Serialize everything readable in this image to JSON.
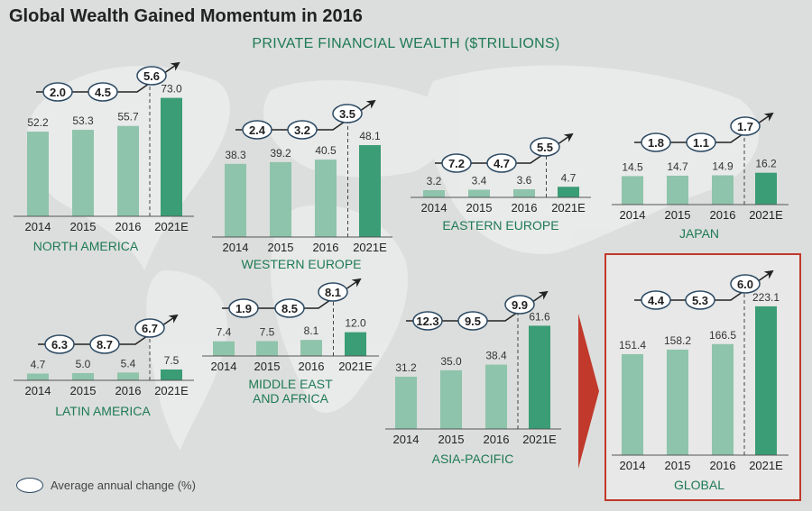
{
  "title": "Global Wealth Gained Momentum in 2016",
  "subtitle": "PRIVATE FINANCIAL WEALTH ($TRILLIONS)",
  "legend_label": "Average annual change (%)",
  "colors": {
    "bar": "#8ec4ab",
    "bar_forecast": "#3a9d75",
    "region_label": "#1e7a55",
    "highlight_border": "#c0392b"
  },
  "chart_data": [
    {
      "type": "bar",
      "title": "NORTH AMERICA",
      "categories": [
        "2014",
        "2015",
        "2016",
        "2021E"
      ],
      "values": [
        52.2,
        53.3,
        55.7,
        73.0
      ],
      "value_labels": [
        "52.2",
        "53.3",
        "55.7",
        "73.0"
      ],
      "annual_change": [
        "2.0",
        "4.5",
        "5.6"
      ]
    },
    {
      "type": "bar",
      "title": "WESTERN EUROPE",
      "categories": [
        "2014",
        "2015",
        "2016",
        "2021E"
      ],
      "values": [
        38.3,
        39.2,
        40.5,
        48.1
      ],
      "value_labels": [
        "38.3",
        "39.2",
        "40.5",
        "48.1"
      ],
      "annual_change": [
        "2.4",
        "3.2",
        "3.5"
      ]
    },
    {
      "type": "bar",
      "title": "EASTERN EUROPE",
      "categories": [
        "2014",
        "2015",
        "2016",
        "2021E"
      ],
      "values": [
        3.2,
        3.4,
        3.6,
        4.7
      ],
      "value_labels": [
        "3.2",
        "3.4",
        "3.6",
        "4.7"
      ],
      "annual_change": [
        "7.2",
        "4.7",
        "5.5"
      ]
    },
    {
      "type": "bar",
      "title": "JAPAN",
      "categories": [
        "2014",
        "2015",
        "2016",
        "2021E"
      ],
      "values": [
        14.5,
        14.7,
        14.9,
        16.2
      ],
      "value_labels": [
        "14.5",
        "14.7",
        "14.9",
        "16.2"
      ],
      "annual_change": [
        "1.8",
        "1.1",
        "1.7"
      ]
    },
    {
      "type": "bar",
      "title": "LATIN AMERICA",
      "categories": [
        "2014",
        "2015",
        "2016",
        "2021E"
      ],
      "values": [
        4.7,
        5.0,
        5.4,
        7.5
      ],
      "value_labels": [
        "4.7",
        "5.0",
        "5.4",
        "7.5"
      ],
      "annual_change": [
        "6.3",
        "8.7",
        "6.7"
      ]
    },
    {
      "type": "bar",
      "title": "MIDDLE EAST AND AFRICA",
      "categories": [
        "2014",
        "2015",
        "2016",
        "2021E"
      ],
      "values": [
        7.4,
        7.5,
        8.1,
        12.0
      ],
      "value_labels": [
        "7.4",
        "7.5",
        "8.1",
        "12.0"
      ],
      "annual_change": [
        "1.9",
        "8.5",
        "8.1"
      ]
    },
    {
      "type": "bar",
      "title": "ASIA-PACIFIC",
      "categories": [
        "2014",
        "2015",
        "2016",
        "2021E"
      ],
      "values": [
        31.2,
        35.0,
        38.4,
        61.6
      ],
      "value_labels": [
        "31.2",
        "35.0",
        "38.4",
        "61.6"
      ],
      "annual_change": [
        "12.3",
        "9.5",
        "9.9"
      ]
    },
    {
      "type": "bar",
      "title": "GLOBAL",
      "categories": [
        "2014",
        "2015",
        "2016",
        "2021E"
      ],
      "values": [
        151.4,
        158.2,
        166.5,
        223.1
      ],
      "value_labels": [
        "151.4",
        "158.2",
        "166.5",
        "223.1"
      ],
      "annual_change": [
        "4.4",
        "5.3",
        "6.0"
      ]
    }
  ]
}
